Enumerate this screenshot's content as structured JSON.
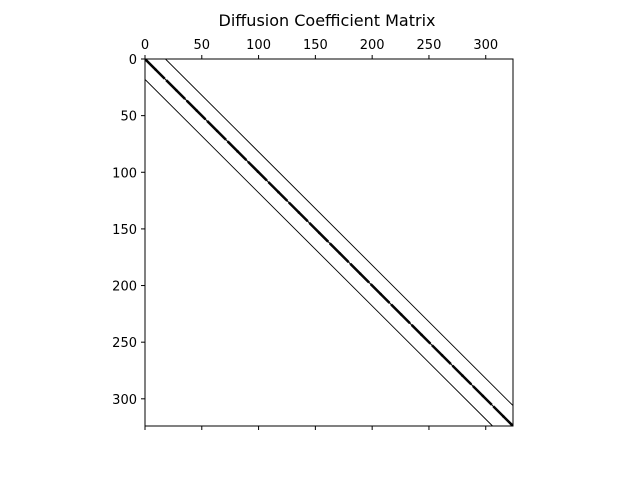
{
  "chart_data": {
    "type": "spy",
    "title": "Diffusion Coefficient Matrix",
    "xlabel": "",
    "ylabel": "",
    "matrix_size": 324,
    "block_size": 18,
    "xlim": [
      0,
      324
    ],
    "ylim": [
      324,
      0
    ],
    "x_ticks": [
      0,
      50,
      100,
      150,
      200,
      250,
      300
    ],
    "y_ticks": [
      0,
      50,
      100,
      150,
      200,
      250,
      300
    ],
    "nonzero_diagonal_offsets": [
      -18,
      -1,
      0,
      1,
      18
    ],
    "x_ticks_position": "top and bottom",
    "grid": false,
    "colors": {
      "marker": "#000000",
      "axes": "#000000",
      "background": "#ffffff"
    }
  }
}
